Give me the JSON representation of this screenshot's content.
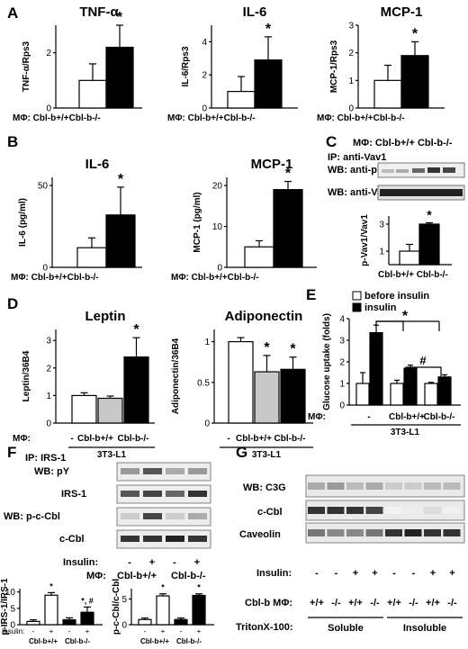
{
  "panels": {
    "A": {
      "label": "A",
      "charts": [
        {
          "title": "TNF-α",
          "ylabel": "TNF-α/Rps3",
          "ticks": [
            "0",
            "2"
          ],
          "ylim": [
            0,
            3
          ],
          "tickvals": [
            0,
            2
          ],
          "values": [
            1.0,
            2.2
          ],
          "errors": [
            0.6,
            0.8
          ],
          "star": "*"
        },
        {
          "title": "IL-6",
          "ylabel": "IL-6/Rps3",
          "ticks": [
            "0",
            "2",
            "4"
          ],
          "ylim": [
            0,
            5
          ],
          "tickvals": [
            0,
            2,
            4
          ],
          "values": [
            1.0,
            2.9
          ],
          "errors": [
            0.9,
            1.4
          ],
          "star": "*"
        },
        {
          "title": "MCP-1",
          "ylabel": "MCP-1/Rps3",
          "ticks": [
            "0",
            "1",
            "2",
            "3"
          ],
          "ylim": [
            0,
            3
          ],
          "tickvals": [
            0,
            1,
            2,
            3
          ],
          "values": [
            1.0,
            1.9
          ],
          "errors": [
            0.55,
            0.5
          ],
          "star": "*"
        }
      ],
      "xlabel": "MΦ: Cbl-b+/+Cbl-b-/-"
    },
    "B": {
      "label": "B",
      "charts": [
        {
          "title": "IL-6",
          "ylabel": "IL-6 (pg/ml)",
          "ticks": [
            "0",
            "50"
          ],
          "ylim": [
            0,
            55
          ],
          "tickvals": [
            0,
            50
          ],
          "values": [
            12,
            32
          ],
          "errors": [
            6,
            17
          ],
          "star": "*"
        },
        {
          "title": "MCP-1",
          "ylabel": "MCP-1 (pg/ml)",
          "ticks": [
            "0",
            "10",
            "20"
          ],
          "ylim": [
            0,
            22
          ],
          "tickvals": [
            0,
            10,
            20
          ],
          "values": [
            5,
            19
          ],
          "errors": [
            1.5,
            2
          ],
          "star": "*"
        }
      ],
      "xlabel": "MΦ: Cbl-b+/+Cbl-b-/-"
    },
    "C": {
      "label": "C",
      "header": "MΦ: Cbl-b+/+  Cbl-b-/-",
      "ip": "IP: anti-Vav1",
      "wb1": "WB: anti-pY",
      "wb2": "WB: anti-Vav1",
      "ylabel": "p-Vav1/Vav1",
      "ticks": [
        "1",
        "3"
      ],
      "tickvals": [
        1,
        3
      ],
      "ylim": [
        0,
        3.6
      ],
      "values": [
        1.0,
        3.0
      ],
      "errors": [
        0.5,
        0.1
      ],
      "star": "*",
      "xlabel": "Cbl-b+/+ Cbl-b-/-"
    },
    "D": {
      "label": "D",
      "charts": [
        {
          "title": "Leptin",
          "ylabel": "Leptin/36B4",
          "ticks": [
            "0",
            "1",
            "2",
            "3"
          ],
          "tickvals": [
            0,
            1,
            2,
            3
          ],
          "ylim": [
            0,
            3.4
          ],
          "values": [
            1.0,
            0.9,
            2.4
          ],
          "errors": [
            0.1,
            0.08,
            0.7
          ],
          "stars": [
            "",
            "",
            "*"
          ],
          "colors": [
            "#ffffff",
            "#c8c8c8",
            "#000000"
          ]
        },
        {
          "title": "Adiponectin",
          "ylabel": "Adiponectin/36B4",
          "ticks": [
            "0",
            "0.5",
            "1"
          ],
          "tickvals": [
            0,
            0.5,
            1
          ],
          "ylim": [
            0,
            1.15
          ],
          "values": [
            1.0,
            0.63,
            0.66
          ],
          "errors": [
            0.05,
            0.2,
            0.15
          ],
          "stars": [
            "",
            "*",
            "*"
          ],
          "colors": [
            "#ffffff",
            "#c8c8c8",
            "#000000"
          ]
        }
      ],
      "mf": "MΦ:",
      "xcats": [
        "-",
        "Cbl-b+/+",
        "Cbl-b-/-"
      ],
      "cell": "3T3-L1"
    },
    "E": {
      "label": "E",
      "legend": [
        "before insulin",
        "insulin"
      ],
      "ylabel": "Glucose uptake (folds)",
      "ticks": [
        "0",
        "1",
        "2",
        "3",
        "4"
      ],
      "tickvals": [
        0,
        1,
        2,
        3,
        4
      ],
      "ylim": [
        0,
        4
      ],
      "before": [
        1.0,
        1.0,
        1.0
      ],
      "insulin": [
        3.35,
        1.7,
        1.3
      ],
      "before_err": [
        0.5,
        0.15,
        0.05
      ],
      "insulin_err": [
        0.35,
        0.15,
        0.1
      ],
      "star": "*",
      "hash": "#",
      "mf": "MΦ:",
      "xcats": [
        "-",
        "Cbl-b+/+",
        "Cbl-b-/-"
      ],
      "cell": "3T3-L1"
    },
    "F": {
      "label": "F",
      "ip": "IP: IRS-1",
      "rows": [
        "WB: pY",
        "IRS-1",
        "WB: p-c-Cbl",
        "c-Cbl"
      ],
      "insulin_label": "Insulin:",
      "insulin_signs": [
        "-",
        "+",
        "-",
        "+"
      ],
      "mf_label": "MΦ:",
      "groups": [
        "Cbl-b+/+",
        "Cbl-b-/-"
      ],
      "small": [
        {
          "ylabel": "p-IRS-1/IRS-1",
          "ticks": [
            "0",
            "5",
            "10"
          ],
          "tickvals": [
            0,
            5,
            10
          ],
          "ylim": [
            0,
            11
          ],
          "values": [
            1.0,
            9.0,
            1.5,
            3.8
          ],
          "errors": [
            0.5,
            0.8,
            0.6,
            1.6
          ],
          "stars": [
            "",
            "*",
            "",
            "*, #"
          ]
        },
        {
          "ylabel": "p-c-Cbl/c-Cbl",
          "ticks": [
            "0",
            "5"
          ],
          "tickvals": [
            0,
            5
          ],
          "ylim": [
            0,
            7
          ],
          "values": [
            1.0,
            5.6,
            1.0,
            5.7
          ],
          "errors": [
            0.3,
            0.4,
            0.3,
            0.3
          ],
          "stars": [
            "",
            "*",
            "",
            "*"
          ]
        }
      ],
      "small_xl": "Insulin:",
      "small_signs": [
        "-",
        "+",
        "-",
        "+"
      ],
      "small_groups": [
        "Cbl-b+/+",
        "Cbl-b-/-"
      ]
    },
    "G": {
      "label": "G",
      "rows": [
        "WB: C3G",
        "c-Cbl",
        "Caveolin"
      ],
      "insulin_label": "Insulin:",
      "insulin_signs": [
        "-",
        "-",
        "+",
        "+",
        "-",
        "-",
        "+",
        "+"
      ],
      "mf_label": "Cbl-b MΦ:",
      "geno": [
        "+/+",
        "-/-",
        "+/+",
        "-/-",
        "+/+",
        "-/-",
        "+/+",
        "-/-"
      ],
      "triton_label": "TritonX-100:",
      "fractions": [
        "Soluble",
        "Insoluble"
      ]
    }
  }
}
